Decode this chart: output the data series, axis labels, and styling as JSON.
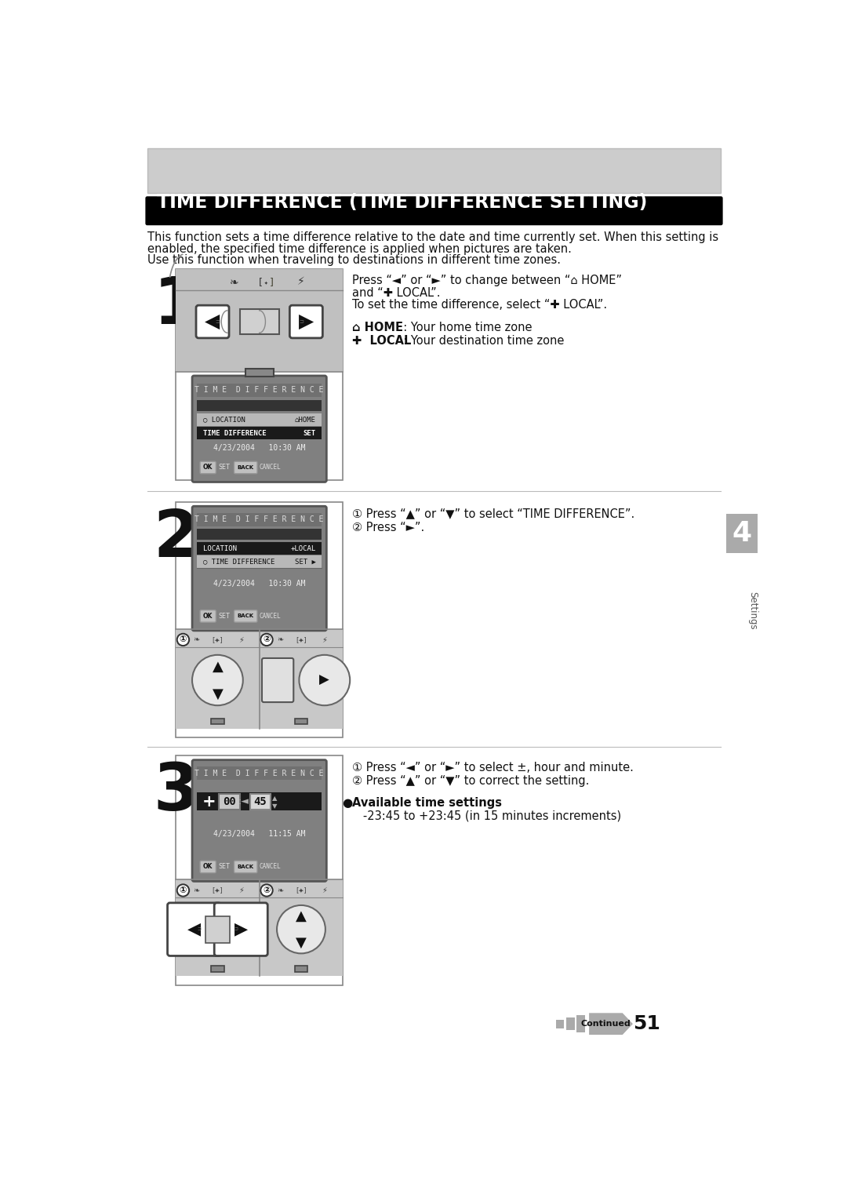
{
  "page_bg": "#ffffff",
  "header_bar_color": "#000000",
  "header_text": "TIME DIFFERENCE (TIME DIFFERENCE SETTING)",
  "header_text_color": "#ffffff",
  "body_line1": "This function sets a time difference relative to the date and time currently set. When this setting is",
  "body_line2": "enabled, the specified time difference is applied when pictures are taken.",
  "body_line3": "Use this function when traveling to destinations in different time zones.",
  "step1_line1": "Press “◄” or “►” to change between “⌂ HOME”",
  "step1_line2": "and “✚ LOCAL”.",
  "step1_line3": "To set the time difference, select “✚ LOCAL”.",
  "step1_home_bold": "⌂ HOME",
  "step1_home_rest": "  : Your home time zone",
  "step1_local_bold": "✚  LOCAL",
  "step1_local_rest": "  : Your destination time zone",
  "step2_desc_1": "① Press “▲” or “▼” to select “TIME DIFFERENCE”.",
  "step2_desc_2": "② Press “►”.",
  "step3_desc_1": "① Press “◄” or “►” to select ±, hour and minute.",
  "step3_desc_2": "② Press “▲” or “▼” to correct the setting.",
  "step3_desc_bold": "Available time settings",
  "step3_desc_3": "   -23:45 to +23:45 (in 15 minutes increments)",
  "sidebar_num": "4",
  "sidebar_label": "Settings",
  "footer_text": "Continued",
  "footer_page": "51"
}
